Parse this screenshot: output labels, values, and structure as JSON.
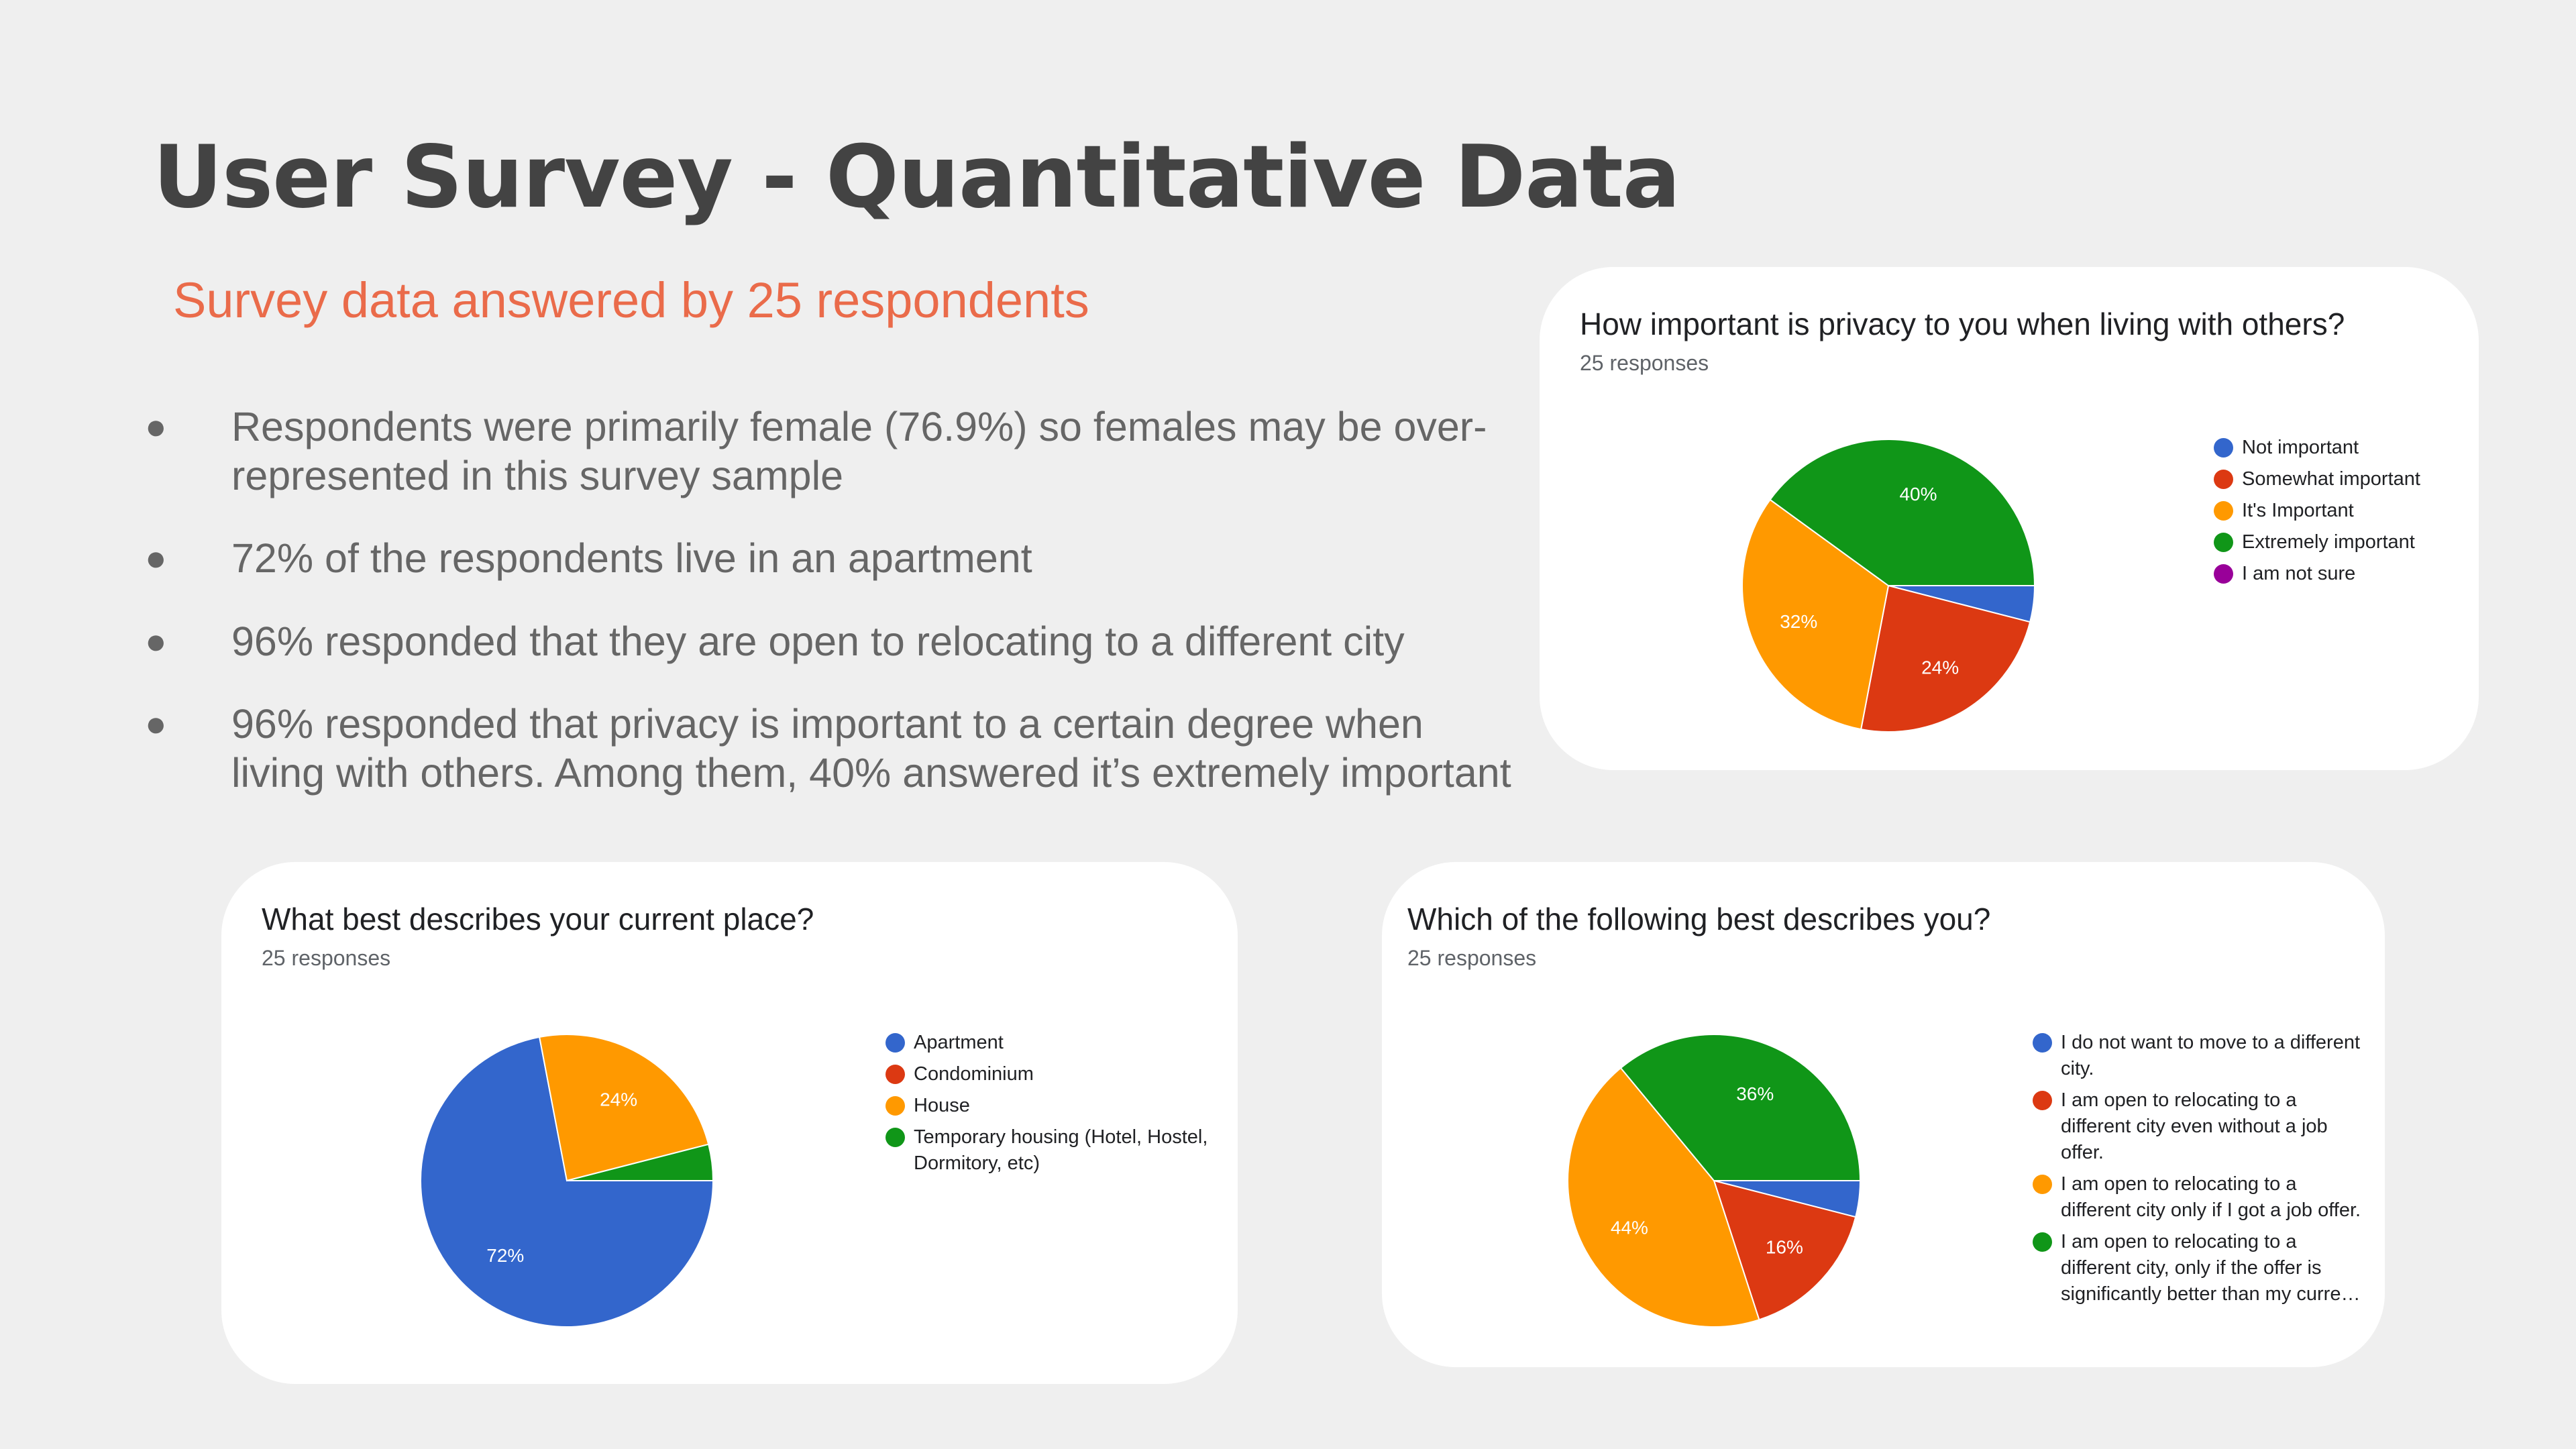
{
  "title": "User Survey - Quantitative Data",
  "subtitle": "Survey data answered by 25 respondents",
  "bullets": [
    "Respondents were primarily female (76.9%) so females may be over-represented in this survey sample",
    "72% of the respondents live in an apartment",
    "96% responded that they are open to relocating to a different city",
    "96% responded that privacy is important to a certain degree when living with others. Among them, 40% answered it’s extremely important"
  ],
  "bullet_marker": "●",
  "colors": {
    "blue": "#3366cc",
    "red": "#dc3912",
    "orange": "#ff9900",
    "green": "#109618",
    "purple": "#990099",
    "accent": "#ea6b4a"
  },
  "chart_data": [
    {
      "type": "pie",
      "title": "How important is privacy to you when living with others?",
      "subtitle": "25 responses",
      "categories": [
        "Not important",
        "Somewhat important",
        "It's Important",
        "Extremely important",
        "I am not sure"
      ],
      "values": [
        4,
        24,
        32,
        40,
        0
      ],
      "value_labels": [
        "",
        "24%",
        "32%",
        "40%",
        ""
      ],
      "colors": [
        "#3366cc",
        "#dc3912",
        "#ff9900",
        "#109618",
        "#990099"
      ],
      "legend": "right"
    },
    {
      "type": "pie",
      "title": "What best describes your current place?",
      "subtitle": "25 responses",
      "categories": [
        "Apartment",
        "Condominium",
        "House",
        "Temporary housing (Hotel, Hostel, Dormitory, etc)"
      ],
      "values": [
        72,
        0,
        24,
        4
      ],
      "value_labels": [
        "72%",
        "",
        "24%",
        ""
      ],
      "colors": [
        "#3366cc",
        "#dc3912",
        "#ff9900",
        "#109618"
      ],
      "legend": "right"
    },
    {
      "type": "pie",
      "title": "Which of the following best describes you?",
      "subtitle": "25 responses",
      "categories": [
        "I do not want to move to a different city.",
        "I am open to relocating to a different city even without a job offer.",
        "I am open to relocating to a different city only if I got a job offer.",
        "I am open to relocating to a different city, only if the offer is significantly better than my curre…"
      ],
      "values": [
        4,
        16,
        44,
        36
      ],
      "value_labels": [
        "",
        "16%",
        "44%",
        "36%"
      ],
      "colors": [
        "#3366cc",
        "#dc3912",
        "#ff9900",
        "#109618"
      ],
      "legend": "right"
    }
  ]
}
